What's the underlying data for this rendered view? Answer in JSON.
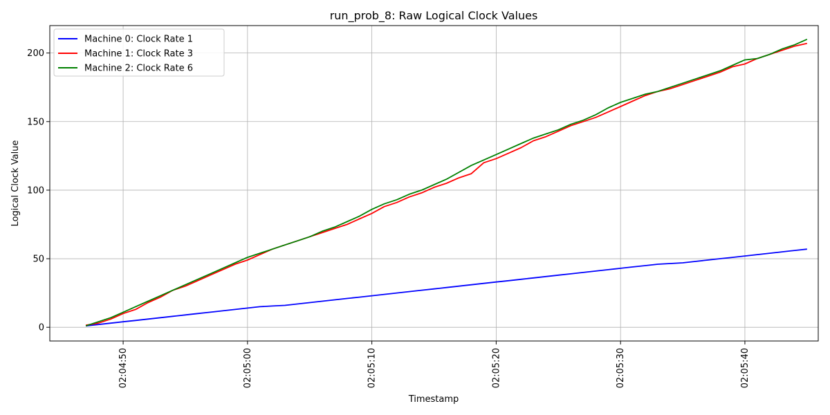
{
  "chart_data": {
    "type": "line",
    "title": "run_prob_8: Raw Logical Clock Values",
    "xlabel": "Timestamp",
    "ylabel": "Logical Clock Value",
    "x_ticks": [
      "02:04:50",
      "02:05:00",
      "02:05:10",
      "02:05:20",
      "02:05:30",
      "02:05:40"
    ],
    "x_tick_seconds": [
      50,
      60,
      70,
      80,
      90,
      100
    ],
    "xlim_seconds": [
      44.1,
      105.9
    ],
    "y_ticks": [
      0,
      50,
      100,
      150,
      200
    ],
    "ylim": [
      -10,
      220
    ],
    "grid": true,
    "legend_position": "top-left",
    "series": [
      {
        "name": "Machine 0: Clock Rate 1",
        "color": "#0000ff",
        "x": [
          47,
          48,
          49,
          50,
          51,
          52,
          53,
          54,
          55,
          56,
          57,
          58,
          59,
          60,
          61,
          62,
          63,
          64,
          65,
          66,
          67,
          68,
          69,
          70,
          71,
          72,
          73,
          74,
          75,
          76,
          77,
          78,
          79,
          80,
          81,
          82,
          83,
          84,
          85,
          86,
          87,
          88,
          89,
          90,
          91,
          92,
          93,
          94,
          95,
          96,
          97,
          98,
          99,
          100,
          101,
          102,
          103,
          104,
          105
        ],
        "y": [
          1,
          2,
          3,
          4,
          5,
          6,
          7,
          8,
          9,
          10,
          11,
          12,
          13,
          14,
          15,
          15.5,
          16,
          17,
          18,
          19,
          20,
          21,
          22,
          23,
          24,
          25,
          26,
          27,
          28,
          29,
          30,
          31,
          32,
          33,
          34,
          35,
          36,
          37,
          38,
          39,
          40,
          41,
          42,
          43,
          44,
          45,
          46,
          46.5,
          47,
          48,
          49,
          50,
          51,
          52,
          53,
          54,
          55,
          56,
          57
        ]
      },
      {
        "name": "Machine 1: Clock Rate 3",
        "color": "#ff0000",
        "x": [
          47,
          48,
          49,
          50,
          51,
          52,
          53,
          54,
          55,
          56,
          57,
          58,
          59,
          60,
          61,
          62,
          63,
          64,
          65,
          66,
          67,
          68,
          69,
          70,
          71,
          72,
          73,
          74,
          75,
          76,
          77,
          78,
          79,
          80,
          81,
          82,
          83,
          84,
          85,
          86,
          87,
          88,
          89,
          90,
          91,
          92,
          93,
          94,
          95,
          96,
          97,
          98,
          99,
          100,
          101,
          102,
          103,
          104,
          105
        ],
        "y": [
          1.5,
          3,
          6,
          10,
          13,
          18,
          22,
          27,
          30,
          34,
          38,
          42,
          46,
          49,
          53,
          57,
          60,
          63,
          66,
          69,
          72,
          75,
          79,
          83,
          88,
          91,
          95,
          98,
          102,
          105,
          109,
          112,
          120,
          123,
          127,
          131,
          136,
          139,
          143,
          147,
          150,
          153,
          157,
          161,
          165,
          169,
          172,
          174,
          177,
          180,
          183,
          186,
          190,
          192,
          196,
          199,
          202,
          205,
          207
        ]
      },
      {
        "name": "Machine 2: Clock Rate 6",
        "color": "#008000",
        "x": [
          47,
          48,
          49,
          50,
          51,
          52,
          53,
          54,
          55,
          56,
          57,
          58,
          59,
          60,
          61,
          62,
          63,
          64,
          65,
          66,
          67,
          68,
          69,
          70,
          71,
          72,
          73,
          74,
          75,
          76,
          77,
          78,
          79,
          80,
          81,
          82,
          83,
          84,
          85,
          86,
          87,
          88,
          89,
          90,
          91,
          92,
          93,
          94,
          95,
          96,
          97,
          98,
          99,
          100,
          101,
          102,
          103,
          104,
          105
        ],
        "y": [
          1,
          4,
          7,
          11,
          15,
          19,
          23,
          27,
          31,
          35,
          39,
          43,
          47,
          51,
          54,
          57,
          60,
          63,
          66,
          70,
          73,
          77,
          81,
          86,
          90,
          93,
          97,
          100,
          104,
          108,
          113,
          118,
          122,
          126,
          130,
          134,
          138,
          141,
          144,
          148,
          151,
          155,
          160,
          164,
          167,
          170,
          172,
          175,
          178,
          181,
          184,
          187,
          191,
          195,
          196,
          199,
          203,
          206,
          210
        ]
      }
    ]
  }
}
